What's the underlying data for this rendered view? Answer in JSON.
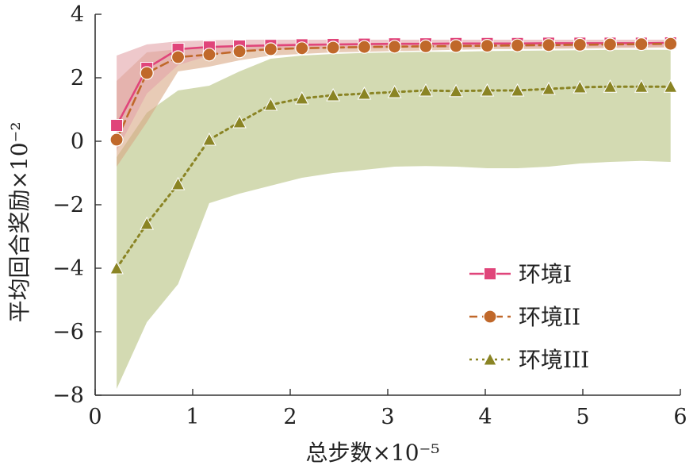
{
  "chart_data": {
    "type": "line",
    "xlabel": "总步数×10⁻⁵",
    "ylabel": "平均回合奖励×10⁻²",
    "xlim": [
      0,
      6
    ],
    "ylim": [
      -8,
      4
    ],
    "xticks": [
      "0",
      "1",
      "2",
      "3",
      "4",
      "5",
      "6"
    ],
    "yticks": [
      "4",
      "2",
      "0",
      "−2",
      "−4",
      "−6",
      "−8"
    ],
    "grid": false,
    "legend_position": "bottom-right",
    "x": [
      0.22,
      0.53,
      0.85,
      1.17,
      1.48,
      1.8,
      2.12,
      2.44,
      2.76,
      3.07,
      3.39,
      3.7,
      4.02,
      4.33,
      4.65,
      4.97,
      5.28,
      5.6,
      5.9
    ],
    "series": [
      {
        "name": "环境I",
        "marker": "square",
        "line_style": "solid",
        "color": "#e0457a",
        "band_color": "#e3a3a8",
        "values": [
          0.5,
          2.3,
          2.9,
          2.97,
          3.0,
          3.02,
          3.04,
          3.05,
          3.06,
          3.07,
          3.07,
          3.08,
          3.08,
          3.08,
          3.09,
          3.09,
          3.09,
          3.09,
          3.1
        ],
        "upper": [
          2.7,
          3.05,
          3.15,
          3.18,
          3.2,
          3.2,
          3.2,
          3.2,
          3.2,
          3.2,
          3.2,
          3.2,
          3.2,
          3.2,
          3.2,
          3.2,
          3.2,
          3.2,
          3.2
        ],
        "lower": [
          -0.3,
          1.5,
          2.4,
          2.7,
          2.85,
          2.88,
          2.9,
          2.92,
          2.93,
          2.94,
          2.95,
          2.95,
          2.95,
          2.96,
          2.96,
          2.96,
          2.97,
          2.97,
          2.98
        ]
      },
      {
        "name": "环境II",
        "marker": "circle",
        "line_style": "dashed",
        "color": "#c0682a",
        "band_color": "#d9a986",
        "values": [
          0.05,
          2.15,
          2.65,
          2.73,
          2.83,
          2.9,
          2.93,
          2.95,
          2.97,
          2.98,
          2.99,
          3.0,
          3.01,
          3.02,
          3.03,
          3.04,
          3.05,
          3.06,
          3.07
        ],
        "upper": [
          1.9,
          2.8,
          2.9,
          2.95,
          3.0,
          3.05,
          3.06,
          3.07,
          3.08,
          3.09,
          3.1,
          3.1,
          3.1,
          3.1,
          3.11,
          3.11,
          3.12,
          3.12,
          3.13
        ],
        "lower": [
          -0.8,
          0.6,
          2.2,
          2.35,
          2.55,
          2.7,
          2.75,
          2.8,
          2.82,
          2.84,
          2.86,
          2.88,
          2.9,
          2.9,
          2.91,
          2.92,
          2.93,
          2.94,
          2.95
        ]
      },
      {
        "name": "环境III",
        "marker": "triangle",
        "line_style": "dotted",
        "color": "#8a8424",
        "band_color": "#cbd3a4",
        "values": [
          -4.0,
          -2.6,
          -1.35,
          0.05,
          0.6,
          1.15,
          1.35,
          1.45,
          1.5,
          1.55,
          1.6,
          1.58,
          1.6,
          1.6,
          1.65,
          1.7,
          1.72,
          1.72,
          1.72
        ],
        "upper": [
          -0.5,
          0.9,
          1.6,
          1.75,
          2.2,
          2.6,
          2.7,
          2.75,
          2.78,
          2.8,
          2.82,
          2.82,
          2.84,
          2.85,
          2.86,
          2.87,
          2.88,
          2.88,
          2.88
        ],
        "lower": [
          -7.8,
          -5.7,
          -4.5,
          -1.95,
          -1.65,
          -1.4,
          -1.15,
          -1.0,
          -0.9,
          -0.8,
          -0.78,
          -0.8,
          -0.85,
          -0.85,
          -0.8,
          -0.7,
          -0.65,
          -0.62,
          -0.65
        ]
      }
    ]
  }
}
